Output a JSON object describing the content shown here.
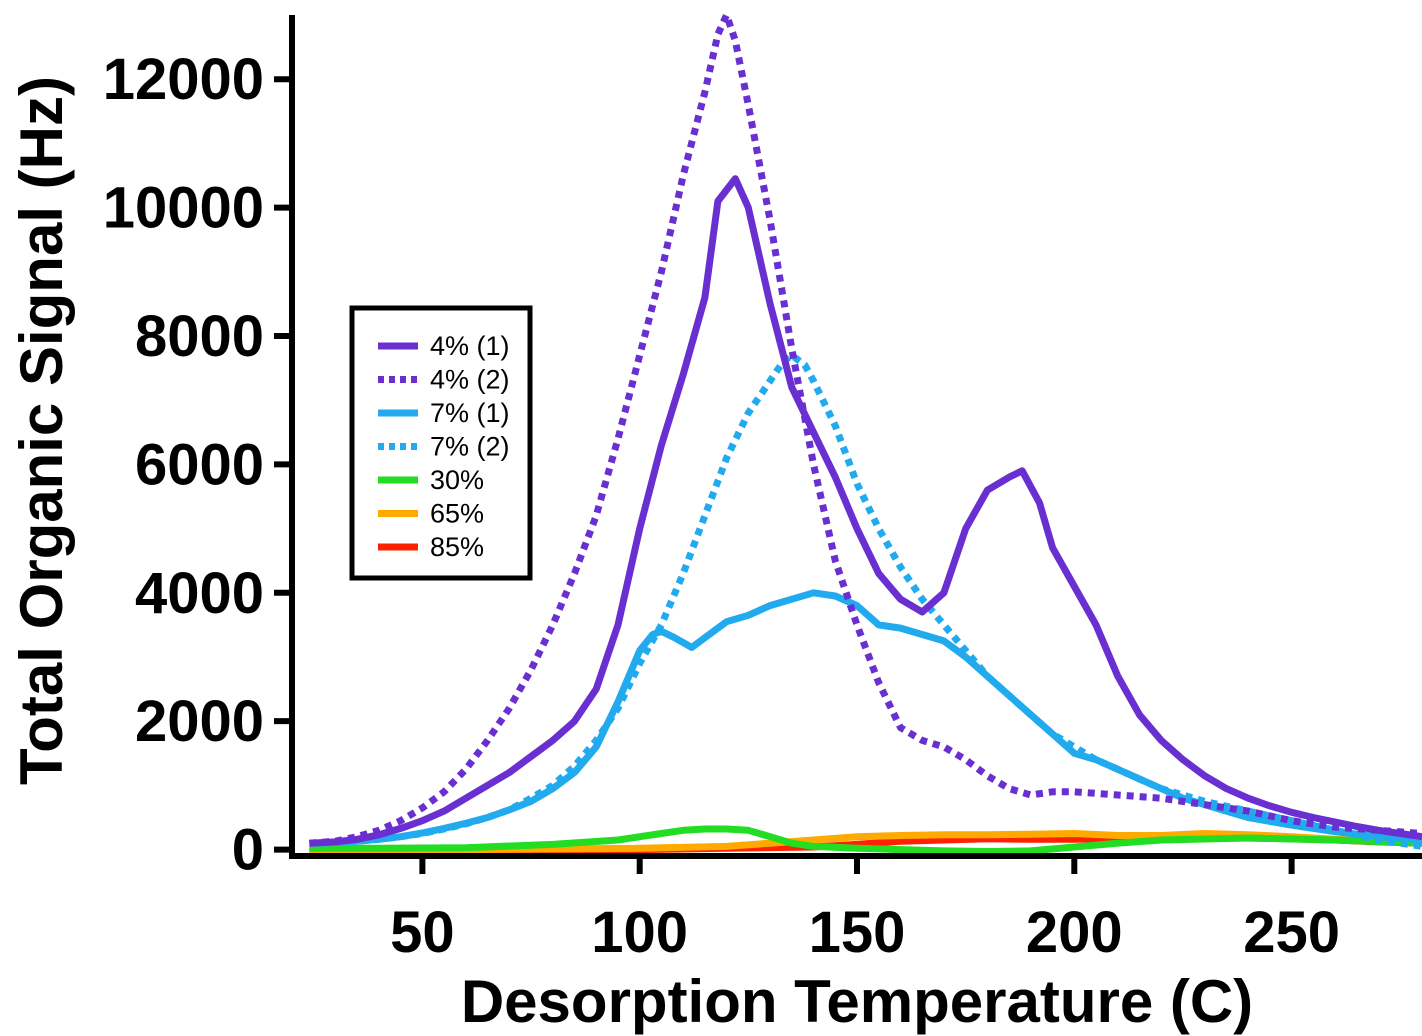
{
  "chart_data": {
    "type": "line",
    "title": "",
    "xlabel": "Desorption Temperature (C)",
    "ylabel": "Total Organic Signal (Hz)",
    "xlim": [
      20,
      280
    ],
    "ylim": [
      -100,
      13000
    ],
    "xticks": [
      50,
      100,
      150,
      200,
      250
    ],
    "yticks": [
      0,
      2000,
      4000,
      6000,
      8000,
      10000,
      12000
    ],
    "grid": false,
    "legend_position": "left",
    "series": [
      {
        "name": "4% (1)",
        "color": "#6a2fd0",
        "style": "solid",
        "x": [
          24,
          30,
          35,
          40,
          45,
          50,
          55,
          60,
          65,
          70,
          75,
          80,
          85,
          90,
          95,
          100,
          105,
          110,
          115,
          118,
          122,
          125,
          130,
          135,
          140,
          145,
          150,
          155,
          160,
          165,
          170,
          175,
          180,
          185,
          188,
          192,
          195,
          200,
          205,
          210,
          215,
          220,
          225,
          230,
          235,
          240,
          245,
          250,
          255,
          260,
          265,
          270,
          275,
          280
        ],
        "y": [
          100,
          120,
          160,
          230,
          330,
          450,
          600,
          800,
          1000,
          1200,
          1450,
          1700,
          2000,
          2500,
          3500,
          5000,
          6300,
          7400,
          8600,
          10100,
          10450,
          10000,
          8500,
          7200,
          6500,
          5800,
          5000,
          4300,
          3900,
          3700,
          4000,
          5000,
          5600,
          5800,
          5900,
          5400,
          4700,
          4100,
          3500,
          2700,
          2100,
          1700,
          1400,
          1150,
          950,
          800,
          680,
          580,
          500,
          430,
          360,
          300,
          250,
          200
        ]
      },
      {
        "name": "4% (2)",
        "color": "#6a2fd0",
        "style": "dotted",
        "x": [
          24,
          30,
          35,
          40,
          45,
          50,
          55,
          60,
          65,
          70,
          75,
          80,
          85,
          90,
          95,
          100,
          105,
          110,
          115,
          118,
          120,
          122,
          125,
          130,
          135,
          140,
          145,
          150,
          155,
          160,
          165,
          170,
          175,
          180,
          185,
          190,
          195,
          200,
          210,
          220,
          230,
          240,
          250,
          260,
          270,
          280
        ],
        "y": [
          100,
          130,
          200,
          300,
          450,
          650,
          900,
          1250,
          1700,
          2200,
          2800,
          3500,
          4300,
          5200,
          6400,
          7700,
          9000,
          10500,
          11800,
          12700,
          13000,
          12600,
          11600,
          9800,
          7800,
          6000,
          4500,
          3500,
          2600,
          1900,
          1700,
          1600,
          1400,
          1150,
          950,
          850,
          900,
          900,
          850,
          800,
          700,
          600,
          450,
          350,
          300,
          250
        ]
      },
      {
        "name": "7% (1)",
        "color": "#22aaee",
        "style": "solid",
        "x": [
          24,
          30,
          35,
          40,
          45,
          50,
          55,
          60,
          65,
          70,
          75,
          80,
          85,
          90,
          95,
          100,
          103,
          105,
          108,
          112,
          115,
          120,
          125,
          130,
          135,
          140,
          145,
          150,
          155,
          160,
          165,
          170,
          175,
          180,
          185,
          190,
          195,
          200,
          205,
          210,
          215,
          220,
          225,
          230,
          235,
          240,
          250,
          260,
          270,
          280
        ],
        "y": [
          100,
          110,
          130,
          160,
          200,
          260,
          330,
          410,
          500,
          620,
          750,
          950,
          1200,
          1600,
          2300,
          3100,
          3350,
          3400,
          3300,
          3150,
          3300,
          3550,
          3650,
          3800,
          3900,
          4000,
          3950,
          3800,
          3500,
          3450,
          3350,
          3250,
          3000,
          2700,
          2400,
          2100,
          1800,
          1500,
          1400,
          1250,
          1100,
          950,
          800,
          700,
          600,
          500,
          380,
          280,
          200,
          150
        ]
      },
      {
        "name": "7% (2)",
        "color": "#22aaee",
        "style": "dotted",
        "x": [
          24,
          30,
          35,
          40,
          45,
          50,
          55,
          60,
          65,
          70,
          75,
          80,
          85,
          90,
          95,
          100,
          105,
          110,
          115,
          120,
          125,
          130,
          133,
          135,
          138,
          140,
          145,
          150,
          155,
          160,
          165,
          170,
          175,
          180,
          185,
          190,
          195,
          200,
          205,
          210,
          215,
          220,
          230,
          240,
          250,
          260,
          270,
          280
        ],
        "y": [
          100,
          110,
          130,
          160,
          200,
          250,
          320,
          400,
          500,
          620,
          800,
          1000,
          1300,
          1700,
          2200,
          2900,
          3500,
          4300,
          5200,
          6100,
          6800,
          7300,
          7600,
          7700,
          7550,
          7300,
          6600,
          5700,
          5000,
          4400,
          3900,
          3500,
          3100,
          2700,
          2400,
          2100,
          1800,
          1600,
          1400,
          1250,
          1100,
          950,
          750,
          600,
          450,
          300,
          150,
          50
        ]
      },
      {
        "name": "30%",
        "color": "#22dd22",
        "style": "solid",
        "x": [
          24,
          40,
          60,
          80,
          95,
          100,
          105,
          110,
          115,
          120,
          125,
          130,
          135,
          140,
          150,
          160,
          170,
          180,
          190,
          200,
          210,
          220,
          240,
          260,
          280
        ],
        "y": [
          20,
          20,
          30,
          80,
          150,
          200,
          250,
          300,
          320,
          320,
          300,
          200,
          100,
          50,
          20,
          0,
          -20,
          -30,
          -20,
          40,
          100,
          150,
          180,
          150,
          100
        ]
      },
      {
        "name": "65%",
        "color": "#ffaa00",
        "style": "solid",
        "x": [
          24,
          40,
          60,
          80,
          100,
          120,
          130,
          140,
          150,
          160,
          170,
          180,
          190,
          200,
          210,
          220,
          230,
          240,
          250,
          260,
          270,
          280
        ],
        "y": [
          -20,
          0,
          0,
          10,
          20,
          50,
          100,
          150,
          200,
          220,
          230,
          230,
          240,
          250,
          220,
          220,
          250,
          230,
          200,
          160,
          140,
          120
        ]
      },
      {
        "name": "85%",
        "color": "#ff2200",
        "style": "solid",
        "x": [
          24,
          40,
          60,
          80,
          100,
          120,
          140,
          150,
          160,
          170,
          180,
          190,
          200,
          210,
          220,
          230,
          240,
          250,
          260,
          270,
          280
        ],
        "y": [
          0,
          0,
          0,
          0,
          0,
          20,
          40,
          80,
          130,
          150,
          170,
          160,
          160,
          170,
          170,
          180,
          180,
          170,
          150,
          120,
          100
        ]
      }
    ]
  }
}
